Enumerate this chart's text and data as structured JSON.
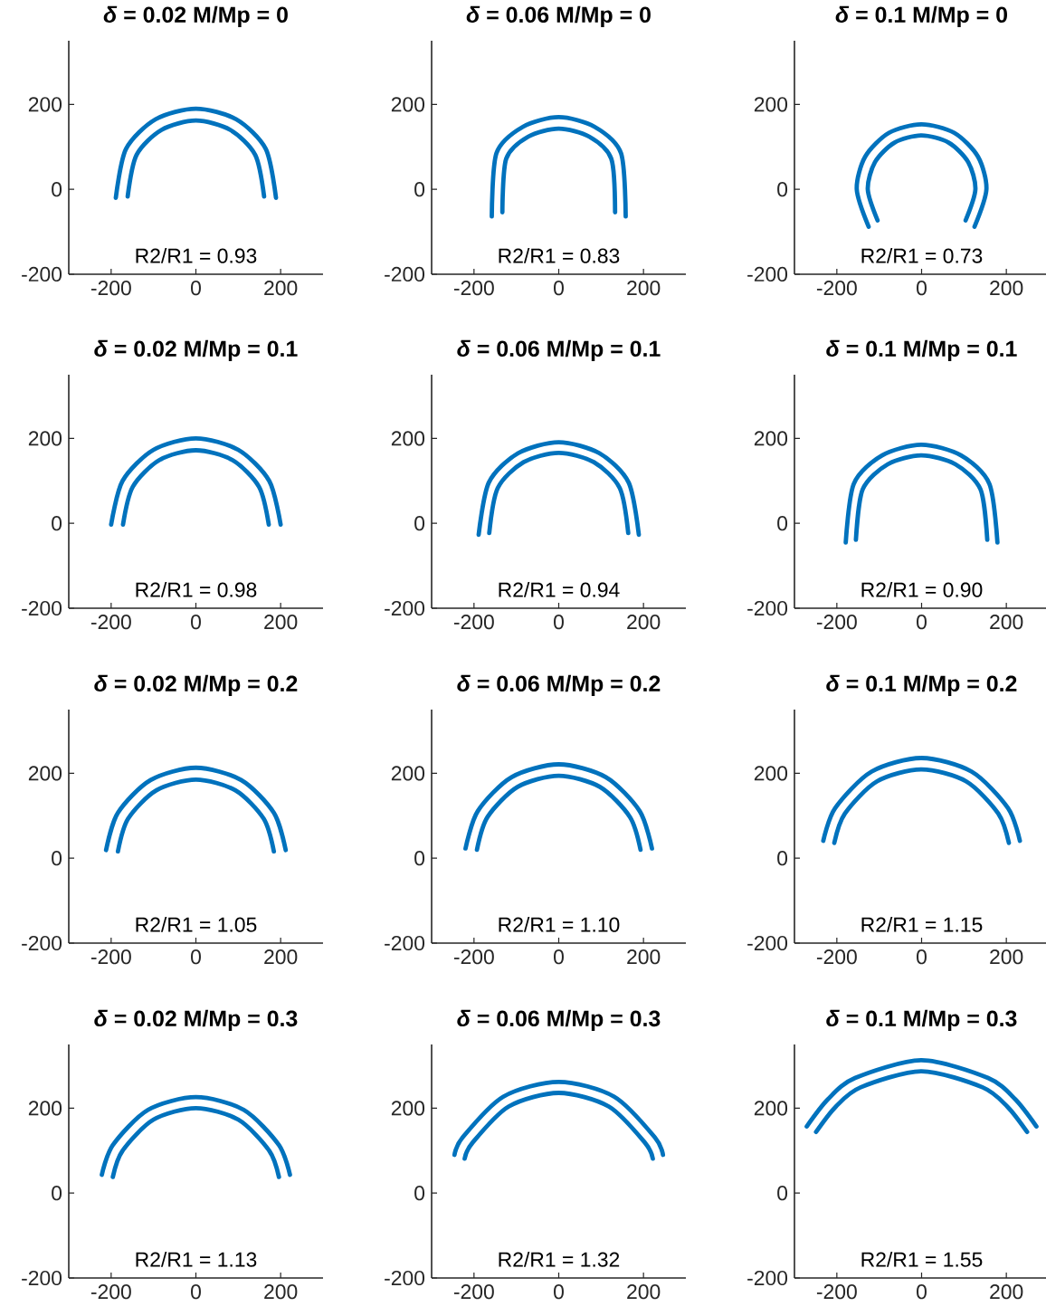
{
  "chart_data": [
    {
      "type": "line",
      "title": "*δ* = 0.02 M/Mp = 0",
      "annotations": [
        "R2/R1 = 0.93"
      ],
      "xlim": [
        -300,
        300
      ],
      "ylim": [
        -200,
        350
      ],
      "xticks": [
        -200,
        0,
        200
      ],
      "yticks": [
        -200,
        0,
        200
      ],
      "series": [
        {
          "color": "#0072bd",
          "x": [
            189,
            165,
            95,
            0,
            -95,
            -165,
            -189
          ],
          "values": [
            -20,
            95,
            165,
            190,
            165,
            95,
            -20
          ]
        },
        {
          "color": "#0072bd",
          "x": [
            161,
            140,
            81,
            0,
            -81,
            -140,
            -161
          ],
          "values": [
            -17,
            81,
            140,
            162,
            140,
            81,
            -17
          ]
        }
      ]
    },
    {
      "type": "line",
      "title": "*δ* = 0.06 M/Mp = 0",
      "annotations": [
        "R2/R1 = 0.83"
      ],
      "xlim": [
        -300,
        300
      ],
      "ylim": [
        -200,
        350
      ],
      "xticks": [
        -200,
        0,
        200
      ],
      "yticks": [
        -200,
        0,
        200
      ],
      "series": [
        {
          "color": "#0072bd",
          "x": [
            158,
            147,
            85,
            0,
            -85,
            -147,
            -158
          ],
          "values": [
            -64,
            85,
            147,
            170,
            147,
            85,
            -64
          ]
        },
        {
          "color": "#0072bd",
          "x": [
            133,
            124,
            72,
            0,
            -72,
            -124,
            -133
          ],
          "values": [
            -54,
            72,
            124,
            143,
            124,
            72,
            -54
          ]
        }
      ]
    },
    {
      "type": "line",
      "title": "*δ* = 0.1 M/Mp = 0",
      "annotations": [
        "R2/R1 = 0.73"
      ],
      "xlim": [
        -300,
        300
      ],
      "ylim": [
        -200,
        350
      ],
      "xticks": [
        -200,
        0,
        200
      ],
      "yticks": [
        -200,
        0,
        200
      ],
      "series": [
        {
          "color": "#0072bd",
          "x": [
            125,
            153,
            133,
            77,
            0,
            -77,
            -133,
            -153,
            -125
          ],
          "values": [
            -88,
            0,
            77,
            133,
            153,
            133,
            77,
            0,
            -88
          ]
        },
        {
          "color": "#0072bd",
          "x": [
            104,
            127,
            110,
            64,
            0,
            -64,
            -110,
            -127,
            -104
          ],
          "values": [
            -73,
            0,
            64,
            110,
            127,
            110,
            64,
            0,
            -73
          ]
        }
      ]
    },
    {
      "type": "line",
      "title": "*δ* = 0.02 M/Mp = 0.1",
      "annotations": [
        "R2/R1 = 0.98"
      ],
      "xlim": [
        -300,
        300
      ],
      "ylim": [
        -200,
        350
      ],
      "xticks": [
        -200,
        0,
        200
      ],
      "yticks": [
        -200,
        0,
        200
      ],
      "series": [
        {
          "color": "#0072bd",
          "x": [
            200,
            173,
            100,
            0,
            -100,
            -173,
            -200
          ],
          "values": [
            -3,
            100,
            173,
            200,
            173,
            100,
            -3
          ]
        },
        {
          "color": "#0072bd",
          "x": [
            172,
            149,
            86,
            0,
            -86,
            -149,
            -172
          ],
          "values": [
            -3,
            86,
            149,
            172,
            149,
            86,
            -3
          ]
        }
      ]
    },
    {
      "type": "line",
      "title": "*δ* = 0.06 M/Mp = 0.1",
      "annotations": [
        "R2/R1 = 0.94"
      ],
      "xlim": [
        -300,
        300
      ],
      "ylim": [
        -200,
        350
      ],
      "xticks": [
        -200,
        0,
        200
      ],
      "yticks": [
        -200,
        0,
        200
      ],
      "series": [
        {
          "color": "#0072bd",
          "x": [
            189,
            165,
            96,
            0,
            -96,
            -165,
            -189
          ],
          "values": [
            -27,
            96,
            165,
            191,
            165,
            96,
            -27
          ]
        },
        {
          "color": "#0072bd",
          "x": [
            164,
            144,
            83,
            0,
            -83,
            -144,
            -164
          ],
          "values": [
            -23,
            83,
            144,
            166,
            144,
            83,
            -23
          ]
        }
      ]
    },
    {
      "type": "line",
      "title": "*δ* = 0.1 M/Mp = 0.1",
      "annotations": [
        "R2/R1 = 0.90"
      ],
      "xlim": [
        -300,
        300
      ],
      "ylim": [
        -200,
        350
      ],
      "xticks": [
        -200,
        0,
        200
      ],
      "yticks": [
        -200,
        0,
        200
      ],
      "series": [
        {
          "color": "#0072bd",
          "x": [
            179,
            160,
            93,
            0,
            -93,
            -160,
            -179
          ],
          "values": [
            -45,
            93,
            160,
            185,
            160,
            93,
            -45
          ]
        },
        {
          "color": "#0072bd",
          "x": [
            155,
            139,
            80,
            0,
            -80,
            -139,
            -155
          ],
          "values": [
            -39,
            80,
            139,
            160,
            139,
            80,
            -39
          ]
        }
      ]
    },
    {
      "type": "line",
      "title": "*δ* = 0.02 M/Mp = 0.2",
      "annotations": [
        "R2/R1 = 1.05"
      ],
      "xlim": [
        -300,
        300
      ],
      "ylim": [
        -200,
        350
      ],
      "xticks": [
        -200,
        0,
        200
      ],
      "yticks": [
        -200,
        0,
        200
      ],
      "series": [
        {
          "color": "#0072bd",
          "x": [
            212,
            184,
            107,
            0,
            -107,
            -184,
            -212
          ],
          "values": [
            19,
            107,
            184,
            213,
            184,
            107,
            19
          ]
        },
        {
          "color": "#0072bd",
          "x": [
            184,
            160,
            93,
            0,
            -93,
            -160,
            -184
          ],
          "values": [
            16,
            93,
            160,
            185,
            160,
            93,
            16
          ]
        }
      ]
    },
    {
      "type": "line",
      "title": "*δ* = 0.06 M/Mp = 0.2",
      "annotations": [
        "R2/R1 = 1.10"
      ],
      "xlim": [
        -300,
        300
      ],
      "ylim": [
        -200,
        350
      ],
      "xticks": [
        -200,
        0,
        200
      ],
      "yticks": [
        -200,
        0,
        200
      ],
      "series": [
        {
          "color": "#0072bd",
          "x": [
            220,
            191,
            111,
            0,
            -111,
            -191,
            -220
          ],
          "values": [
            23,
            111,
            191,
            221,
            191,
            111,
            23
          ]
        },
        {
          "color": "#0072bd",
          "x": [
            193,
            168,
            97,
            0,
            -97,
            -168,
            -193
          ],
          "values": [
            20,
            97,
            168,
            194,
            168,
            97,
            20
          ]
        }
      ]
    },
    {
      "type": "line",
      "title": "*δ* = 0.1 M/Mp = 0.2",
      "annotations": [
        "R2/R1 = 1.15"
      ],
      "xlim": [
        -300,
        300
      ],
      "ylim": [
        -200,
        350
      ],
      "xticks": [
        -200,
        0,
        200
      ],
      "yticks": [
        -200,
        0,
        200
      ],
      "series": [
        {
          "color": "#0072bd",
          "x": [
            232,
            204,
            118,
            0,
            -118,
            -204,
            -232
          ],
          "values": [
            41,
            118,
            204,
            236,
            204,
            118,
            41
          ]
        },
        {
          "color": "#0072bd",
          "x": [
            206,
            181,
            105,
            0,
            -105,
            -181,
            -206
          ],
          "values": [
            36,
            105,
            181,
            209,
            181,
            105,
            36
          ]
        }
      ]
    },
    {
      "type": "line",
      "title": "*δ* = 0.02 M/Mp = 0.3",
      "annotations": [
        "R2/R1 = 1.13"
      ],
      "xlim": [
        -300,
        300
      ],
      "ylim": [
        -200,
        350
      ],
      "xticks": [
        -200,
        0,
        200
      ],
      "yticks": [
        -200,
        0,
        200
      ],
      "series": [
        {
          "color": "#0072bd",
          "x": [
            222,
            196,
            113,
            0,
            -113,
            -196,
            -222
          ],
          "values": [
            43,
            113,
            196,
            226,
            196,
            113,
            43
          ]
        },
        {
          "color": "#0072bd",
          "x": [
            196,
            173,
            100,
            0,
            -100,
            -173,
            -196
          ],
          "values": [
            38,
            100,
            173,
            200,
            173,
            100,
            38
          ]
        }
      ]
    },
    {
      "type": "line",
      "title": "*δ* = 0.06 M/Mp = 0.3",
      "annotations": [
        "R2/R1 = 1.32"
      ],
      "xlim": [
        -300,
        300
      ],
      "ylim": [
        -200,
        350
      ],
      "xticks": [
        -200,
        0,
        200
      ],
      "yticks": [
        -200,
        0,
        200
      ],
      "series": [
        {
          "color": "#0072bd",
          "x": [
            246,
            227,
            131,
            0,
            -131,
            -227,
            -246
          ],
          "values": [
            90,
            131,
            227,
            262,
            227,
            131,
            90
          ]
        },
        {
          "color": "#0072bd",
          "x": [
            222,
            204,
            118,
            0,
            -118,
            -204,
            -222
          ],
          "values": [
            81,
            118,
            204,
            236,
            204,
            118,
            81
          ]
        }
      ]
    },
    {
      "type": "line",
      "title": "*δ* = 0.1 M/Mp = 0.3",
      "annotations": [
        "R2/R1 = 1.55"
      ],
      "xlim": [
        -300,
        300
      ],
      "ylim": [
        -200,
        350
      ],
      "xticks": [
        -200,
        0,
        200
      ],
      "yticks": [
        -200,
        0,
        200
      ],
      "series": [
        {
          "color": "#0072bd",
          "x": [
            271,
            221,
            157,
            0,
            -157,
            -221,
            -271
          ],
          "values": [
            157,
            221,
            271,
            313,
            271,
            221,
            157
          ]
        },
        {
          "color": "#0072bd",
          "x": [
            249,
            203,
            144,
            0,
            -144,
            -203,
            -249
          ],
          "values": [
            144,
            203,
            249,
            287,
            249,
            203,
            144
          ]
        }
      ]
    }
  ]
}
